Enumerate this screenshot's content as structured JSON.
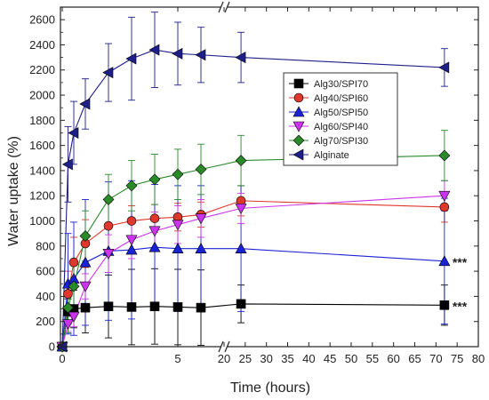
{
  "chart_data": {
    "type": "line",
    "xlabel": "Time (hours)",
    "ylabel": "Water uptake (%)",
    "ylim": [
      0,
      2700
    ],
    "yticks": [
      0,
      200,
      400,
      600,
      800,
      1000,
      1200,
      1400,
      1600,
      1800,
      2000,
      2200,
      2400,
      2600
    ],
    "x_axis_break": true,
    "xlim_segment1": [
      0,
      7
    ],
    "xticks_segment1": [
      0,
      5
    ],
    "xlim_segment2": [
      20,
      80
    ],
    "xticks_segment2": [
      20,
      25,
      30,
      35,
      40,
      45,
      50,
      55,
      60,
      65,
      70,
      75,
      80
    ],
    "legend_position": "top-right-inside",
    "grid": false,
    "annotations": [
      {
        "text": "***",
        "x": 72,
        "y": 680
      },
      {
        "text": "***",
        "x": 72,
        "y": 330
      }
    ],
    "series": [
      {
        "name": "Alg30/SPI70",
        "color": "#000000",
        "marker": "square",
        "x": [
          0,
          0.25,
          0.5,
          1,
          2,
          3,
          4,
          5,
          6,
          24,
          72
        ],
        "y": [
          0,
          280,
          300,
          310,
          320,
          315,
          320,
          315,
          310,
          340,
          330
        ],
        "err": [
          0,
          100,
          150,
          200,
          250,
          300,
          300,
          300,
          300,
          150,
          160
        ]
      },
      {
        "name": "Alg40/SPI60",
        "color": "#e0372c",
        "marker": "circle",
        "x": [
          0,
          0.25,
          0.5,
          1,
          2,
          3,
          4,
          5,
          6,
          24,
          72
        ],
        "y": [
          0,
          420,
          670,
          820,
          960,
          1000,
          1020,
          1030,
          1050,
          1160,
          1110
        ],
        "err": [
          0,
          180,
          200,
          190,
          190,
          120,
          110,
          110,
          100,
          120,
          120
        ]
      },
      {
        "name": "Alg50/SPI50",
        "color": "#1a22d6",
        "marker": "triangle-up",
        "x": [
          0,
          0.25,
          0.5,
          1,
          2,
          3,
          4,
          5,
          6,
          24,
          72
        ],
        "y": [
          0,
          500,
          540,
          670,
          760,
          770,
          790,
          780,
          780,
          780,
          680
        ],
        "err": [
          0,
          400,
          450,
          500,
          550,
          550,
          500,
          500,
          500,
          500,
          500
        ]
      },
      {
        "name": "Alg60/SPI40",
        "color": "#cc33ee",
        "marker": "triangle-down",
        "x": [
          0,
          0.25,
          0.5,
          1,
          2,
          3,
          4,
          5,
          6,
          24,
          72
        ],
        "y": [
          0,
          180,
          240,
          480,
          740,
          850,
          920,
          970,
          1020,
          1100,
          1200
        ],
        "err": [
          0,
          60,
          80,
          100,
          150,
          150,
          150,
          150,
          150,
          120,
          120
        ]
      },
      {
        "name": "Alg70/SPI30",
        "color": "#2a8a2a",
        "marker": "diamond",
        "x": [
          0,
          0.25,
          0.5,
          1,
          2,
          3,
          4,
          5,
          6,
          24,
          72
        ],
        "y": [
          0,
          310,
          480,
          880,
          1170,
          1280,
          1330,
          1370,
          1410,
          1480,
          1520
        ],
        "err": [
          0,
          200,
          200,
          200,
          200,
          200,
          200,
          200,
          200,
          200,
          200
        ]
      },
      {
        "name": "Alginate",
        "color": "#1f1f8a",
        "marker": "triangle-left",
        "x": [
          0,
          0.25,
          0.5,
          1,
          2,
          3,
          4,
          5,
          6,
          24,
          72
        ],
        "y": [
          0,
          1450,
          1700,
          1930,
          2180,
          2290,
          2360,
          2330,
          2320,
          2300,
          2220
        ],
        "err": [
          0,
          300,
          250,
          200,
          230,
          330,
          300,
          250,
          220,
          200,
          150
        ]
      }
    ]
  }
}
